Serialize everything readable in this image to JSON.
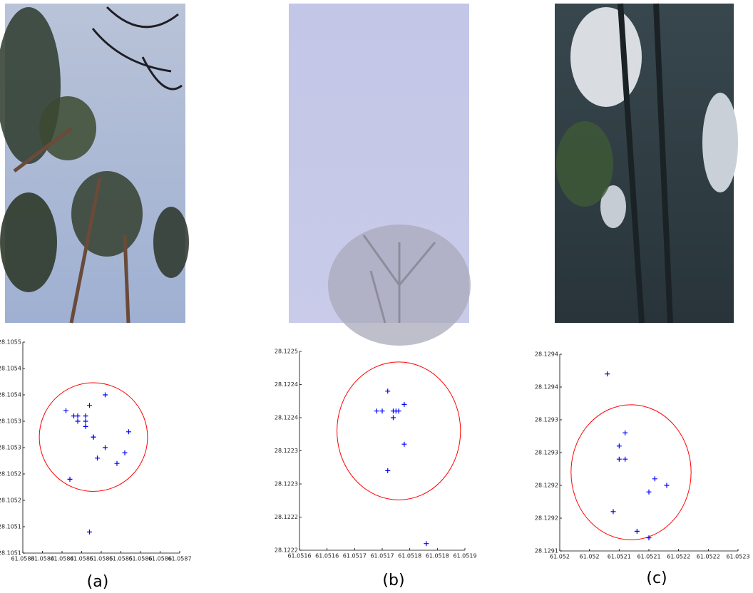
{
  "chart_data": [
    {
      "type": "scatter",
      "caption": "(a)",
      "color": "#0000ff",
      "x": [
        61.05841,
        61.05843,
        61.05844,
        61.05846,
        61.05844,
        61.05846,
        61.05846,
        61.05847,
        61.05851,
        61.05848,
        61.05848,
        61.05849,
        61.05851,
        61.05856,
        61.05857,
        61.05854,
        61.05842,
        61.05847
      ],
      "y": [
        28.10537,
        28.10536,
        28.10536,
        28.10536,
        28.10535,
        28.10535,
        28.10534,
        28.10538,
        28.1054,
        28.10532,
        28.10532,
        28.10528,
        28.1053,
        28.10529,
        28.10533,
        28.10527,
        28.10524,
        28.10514
      ],
      "circle": {
        "cx": 61.05848,
        "cy": 28.10532,
        "rx": 0.000138,
        "ry": 0.000103,
        "color": "#ff0000"
      },
      "xlim": [
        61.0583,
        61.0587
      ],
      "ylim": [
        28.1051,
        28.1055
      ],
      "xticks": [
        61.0583,
        {
          "value": 61.05835,
          "label": "61.0584"
        },
        61.0584,
        {
          "value": 61.05845,
          "label": "61.0585"
        },
        61.0585,
        {
          "value": 61.05855,
          "label": "61.0585"
        },
        61.0586,
        {
          "value": 61.05865,
          "label": "61.0586"
        },
        61.0587
      ],
      "yticks": [
        28.1051,
        {
          "value": 28.10515,
          "label": "28.1051"
        },
        28.1052,
        {
          "value": 28.10525,
          "label": "28.1052"
        },
        28.1053,
        {
          "value": 28.10535,
          "label": "28.1053"
        },
        28.1054,
        {
          "value": 28.10545,
          "label": "28.1054"
        },
        28.1055
      ]
    },
    {
      "type": "scatter",
      "caption": "(b)",
      "color": "#0000ff",
      "x": [
        61.05176,
        61.05174,
        61.05175,
        61.05177,
        61.051775,
        61.05178,
        61.05177,
        61.05179,
        61.05179,
        61.05176,
        61.05183
      ],
      "y": [
        28.12244,
        28.12241,
        28.12241,
        28.12241,
        28.12241,
        28.12241,
        28.1224,
        28.12242,
        28.12236,
        28.12232,
        28.12221
      ],
      "circle": {
        "cx": 61.05178,
        "cy": 28.12238,
        "rx": 0.000112,
        "ry": 0.000104,
        "color": "#ff0000"
      },
      "xlim": [
        61.0516,
        61.0519
      ],
      "ylim": [
        28.1222,
        28.1225
      ],
      "xticks": [
        61.0516,
        {
          "value": 61.05165,
          "label": "61.0516"
        },
        61.0517,
        {
          "value": 61.05175,
          "label": "61.0517"
        },
        61.0518,
        {
          "value": 61.05185,
          "label": "61.0518"
        },
        61.0519
      ],
      "yticks": [
        28.1222,
        {
          "value": 28.12225,
          "label": "28.1222"
        },
        28.1223,
        {
          "value": 28.12235,
          "label": "28.1223"
        },
        28.1224,
        {
          "value": 28.12245,
          "label": "28.1224"
        },
        28.1225
      ]
    },
    {
      "type": "scatter",
      "caption": "(c)",
      "color": "#0000ff",
      "x": [
        61.05208,
        61.05211,
        61.0521,
        61.05211,
        61.0521,
        61.05216,
        61.05215,
        61.05218,
        61.05209,
        61.05213,
        61.05215
      ],
      "y": [
        28.12937,
        28.12928,
        28.12926,
        28.12924,
        28.12924,
        28.12921,
        28.12919,
        28.1292,
        28.12916,
        28.12913,
        28.12912
      ],
      "circle": {
        "cx": 61.05212,
        "cy": 28.12922,
        "rx": 0.000101,
        "ry": 0.000103,
        "color": "#ff0000"
      },
      "xlim": [
        61.052,
        61.0523
      ],
      "ylim": [
        28.1291,
        28.1294
      ],
      "xticks": [
        61.052,
        {
          "value": 61.05205,
          "label": "61.052"
        },
        61.0521,
        {
          "value": 61.05215,
          "label": "61.0521"
        },
        61.0522,
        {
          "value": 61.05225,
          "label": "61.0522"
        },
        61.0523
      ],
      "yticks": [
        28.1291,
        {
          "value": 28.12915,
          "label": "28.1292"
        },
        28.1292,
        {
          "value": 28.12925,
          "label": "28.1293"
        },
        28.1293,
        {
          "value": 28.12935,
          "label": "28.1294"
        },
        28.1294
      ]
    }
  ]
}
